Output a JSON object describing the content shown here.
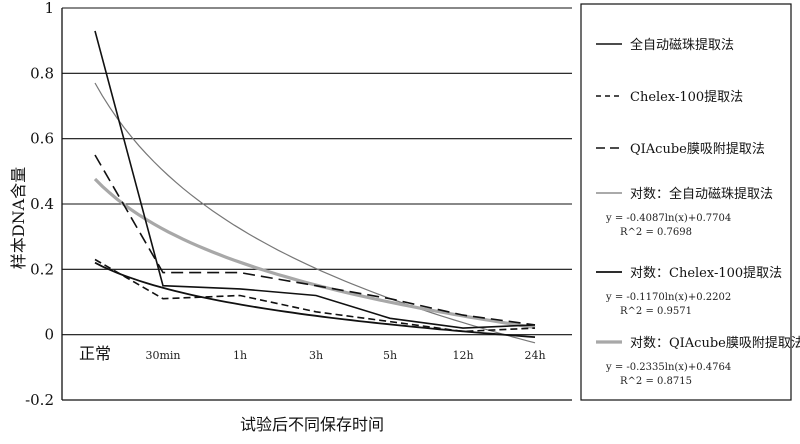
{
  "chart_data": {
    "type": "line",
    "xlabel": "试验后不同保存时间",
    "ylabel": "样本DNA含量",
    "categories": [
      "正常",
      "30min",
      "1h",
      "3h",
      "5h",
      "12h",
      "24h"
    ],
    "y_ticks": [
      "1",
      "0.8",
      "0.6",
      "0.4",
      "0.2",
      "0",
      "-0.2"
    ],
    "ylim": [
      -0.2,
      1.0
    ],
    "grid": "horizontal",
    "legend_position": "right",
    "series": [
      {
        "name": "全自动磁珠提取法",
        "style": "solid",
        "color": "#111111",
        "values": [
          0.93,
          0.15,
          0.14,
          0.12,
          0.05,
          0.02,
          0.03
        ],
        "trend": {
          "name": "对数：全自动磁珠提取法",
          "equation": "y = -0.4087ln(x)+0.7704",
          "r2": "R^2 = 0.7698",
          "color": "#777777",
          "a": -0.4087,
          "b": 0.7704
        }
      },
      {
        "name": "Chelex-100提取法",
        "style": "dash-short",
        "color": "#111111",
        "values": [
          0.23,
          0.11,
          0.12,
          0.07,
          0.04,
          0.01,
          0.02
        ],
        "trend": {
          "name": "对数：Chelex-100提取法",
          "equation": "y = -0.1170ln(x)+0.2202",
          "r2": "R^2 = 0.9571",
          "color": "#111111",
          "a": -0.117,
          "b": 0.2202
        }
      },
      {
        "name": "QIAcube膜吸附提取法",
        "style": "dash-long",
        "color": "#111111",
        "values": [
          0.55,
          0.19,
          0.19,
          0.15,
          0.11,
          0.06,
          0.03
        ],
        "trend": {
          "name": "对数：QIAcube膜吸附提取法",
          "equation": "y = -0.2335ln(x)+0.4764",
          "r2": "R^2 = 0.8715",
          "color": "#a8a8a8",
          "a": -0.2335,
          "b": 0.4764
        }
      }
    ]
  }
}
